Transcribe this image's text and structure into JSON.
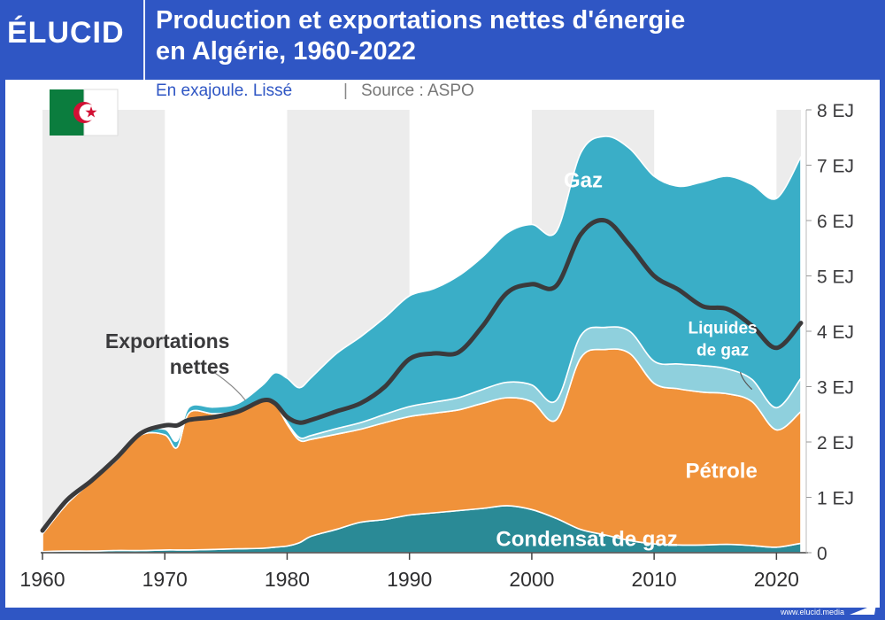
{
  "brand": {
    "logo_text": "ÉLUCID",
    "site": "www.elucid.media"
  },
  "header": {
    "title_line1": "Production et exportations nettes d'énergie",
    "title_line2": "en Algérie, 1960-2022",
    "subtitle_unit": "En exajoule. Lissé",
    "subtitle_sep": "|",
    "subtitle_source": "Source : ASPO"
  },
  "flag": {
    "country": "Algérie",
    "colors": {
      "green": "#0b7d3e",
      "white": "#ffffff",
      "red": "#d21034"
    }
  },
  "colors": {
    "background": "#2f56c4",
    "condensat": "#2a8a96",
    "petrole": "#f0923a",
    "liquides": "#8fd0dd",
    "gaz": "#3aaec7",
    "exports": "#3a3a3c",
    "band": "#ececec"
  },
  "chart_data": {
    "type": "area",
    "stacked": true,
    "title": "Production et exportations nettes d'énergie en Algérie, 1960-2022",
    "subtitle": "En exajoule. Lissé",
    "source": "ASPO",
    "xlim": [
      1960,
      2022
    ],
    "ylim": [
      0,
      8
    ],
    "y_unit": "EJ",
    "x_ticks": [
      1960,
      1970,
      1980,
      1990,
      2000,
      2010,
      2020
    ],
    "y_ticks": [
      0,
      1,
      2,
      3,
      4,
      5,
      6,
      7,
      8
    ],
    "y_tick_labels": [
      "0",
      "1 EJ",
      "2 EJ",
      "3 EJ",
      "4 EJ",
      "5 EJ",
      "6 EJ",
      "7 EJ",
      "8 EJ"
    ],
    "x": [
      1960,
      1962,
      1964,
      1966,
      1968,
      1970,
      1971,
      1972,
      1974,
      1976,
      1978,
      1979,
      1980,
      1981,
      1982,
      1984,
      1986,
      1988,
      1990,
      1992,
      1994,
      1996,
      1998,
      2000,
      2002,
      2004,
      2006,
      2008,
      2010,
      2012,
      2014,
      2016,
      2018,
      2020,
      2022
    ],
    "series": [
      {
        "name": "Condensat de gaz",
        "key": "condensat",
        "values": [
          0.02,
          0.03,
          0.03,
          0.04,
          0.04,
          0.05,
          0.05,
          0.05,
          0.06,
          0.07,
          0.08,
          0.1,
          0.12,
          0.18,
          0.3,
          0.42,
          0.55,
          0.6,
          0.68,
          0.72,
          0.76,
          0.8,
          0.85,
          0.78,
          0.62,
          0.42,
          0.32,
          0.22,
          0.16,
          0.14,
          0.14,
          0.15,
          0.13,
          0.1,
          0.17
        ]
      },
      {
        "name": "Pétrole",
        "key": "petrole",
        "values": [
          0.32,
          0.85,
          1.25,
          1.62,
          2.08,
          2.08,
          1.85,
          2.48,
          2.45,
          2.48,
          2.65,
          2.6,
          2.2,
          1.85,
          1.75,
          1.72,
          1.68,
          1.75,
          1.78,
          1.8,
          1.82,
          1.9,
          1.95,
          1.95,
          1.78,
          3.1,
          3.35,
          3.38,
          2.9,
          2.82,
          2.76,
          2.72,
          2.6,
          2.12,
          2.38
        ]
      },
      {
        "name": "Liquides de gaz",
        "key": "liquides",
        "values": [
          0.0,
          0.0,
          0.0,
          0.0,
          0.0,
          0.0,
          0.0,
          0.0,
          0.0,
          0.0,
          0.0,
          0.0,
          0.03,
          0.05,
          0.07,
          0.1,
          0.12,
          0.15,
          0.18,
          0.2,
          0.22,
          0.25,
          0.28,
          0.3,
          0.35,
          0.4,
          0.4,
          0.4,
          0.4,
          0.45,
          0.48,
          0.45,
          0.4,
          0.4,
          0.6
        ]
      },
      {
        "name": "Gaz",
        "key": "gaz",
        "values": [
          0.02,
          0.02,
          0.03,
          0.04,
          0.05,
          0.1,
          0.12,
          0.1,
          0.12,
          0.15,
          0.3,
          0.55,
          0.8,
          0.9,
          1.05,
          1.35,
          1.55,
          1.75,
          2.0,
          2.05,
          2.2,
          2.4,
          2.7,
          2.9,
          3.05,
          3.3,
          3.45,
          3.3,
          3.34,
          3.21,
          3.32,
          3.48,
          3.52,
          3.78,
          4.0
        ]
      }
    ],
    "line_series": {
      "name": "Exportations nettes",
      "values": [
        0.4,
        0.95,
        1.3,
        1.7,
        2.15,
        2.3,
        2.3,
        2.4,
        2.45,
        2.55,
        2.75,
        2.7,
        2.45,
        2.35,
        2.4,
        2.55,
        2.7,
        3.0,
        3.5,
        3.6,
        3.62,
        4.1,
        4.7,
        4.85,
        4.82,
        5.75,
        6.0,
        5.55,
        5.0,
        4.75,
        4.45,
        4.4,
        4.1,
        3.7,
        4.15
      ]
    },
    "annotations": [
      {
        "text": "Gaz",
        "x": 2004.2,
        "y": 6.6,
        "color": "#ffffff"
      },
      {
        "text_lines": [
          "Exportations",
          "nettes"
        ],
        "x": 1975.3,
        "y": 3.7,
        "color": "#3a3a3c",
        "pointer_to": {
          "x": 1976.6,
          "y": 2.75
        }
      },
      {
        "text_lines": [
          "Liquides",
          "de gaz"
        ],
        "x": 2015.6,
        "y": 3.9,
        "color": "#ffffff",
        "pointer_to": {
          "x": 2018.0,
          "y": 2.95
        }
      },
      {
        "text": "Pétrole",
        "x": 2015.5,
        "y": 1.35,
        "color": "#ffffff"
      },
      {
        "text": "Condensat de gaz",
        "x": 2004.5,
        "y": 0.12,
        "color": "#ffffff"
      }
    ]
  }
}
